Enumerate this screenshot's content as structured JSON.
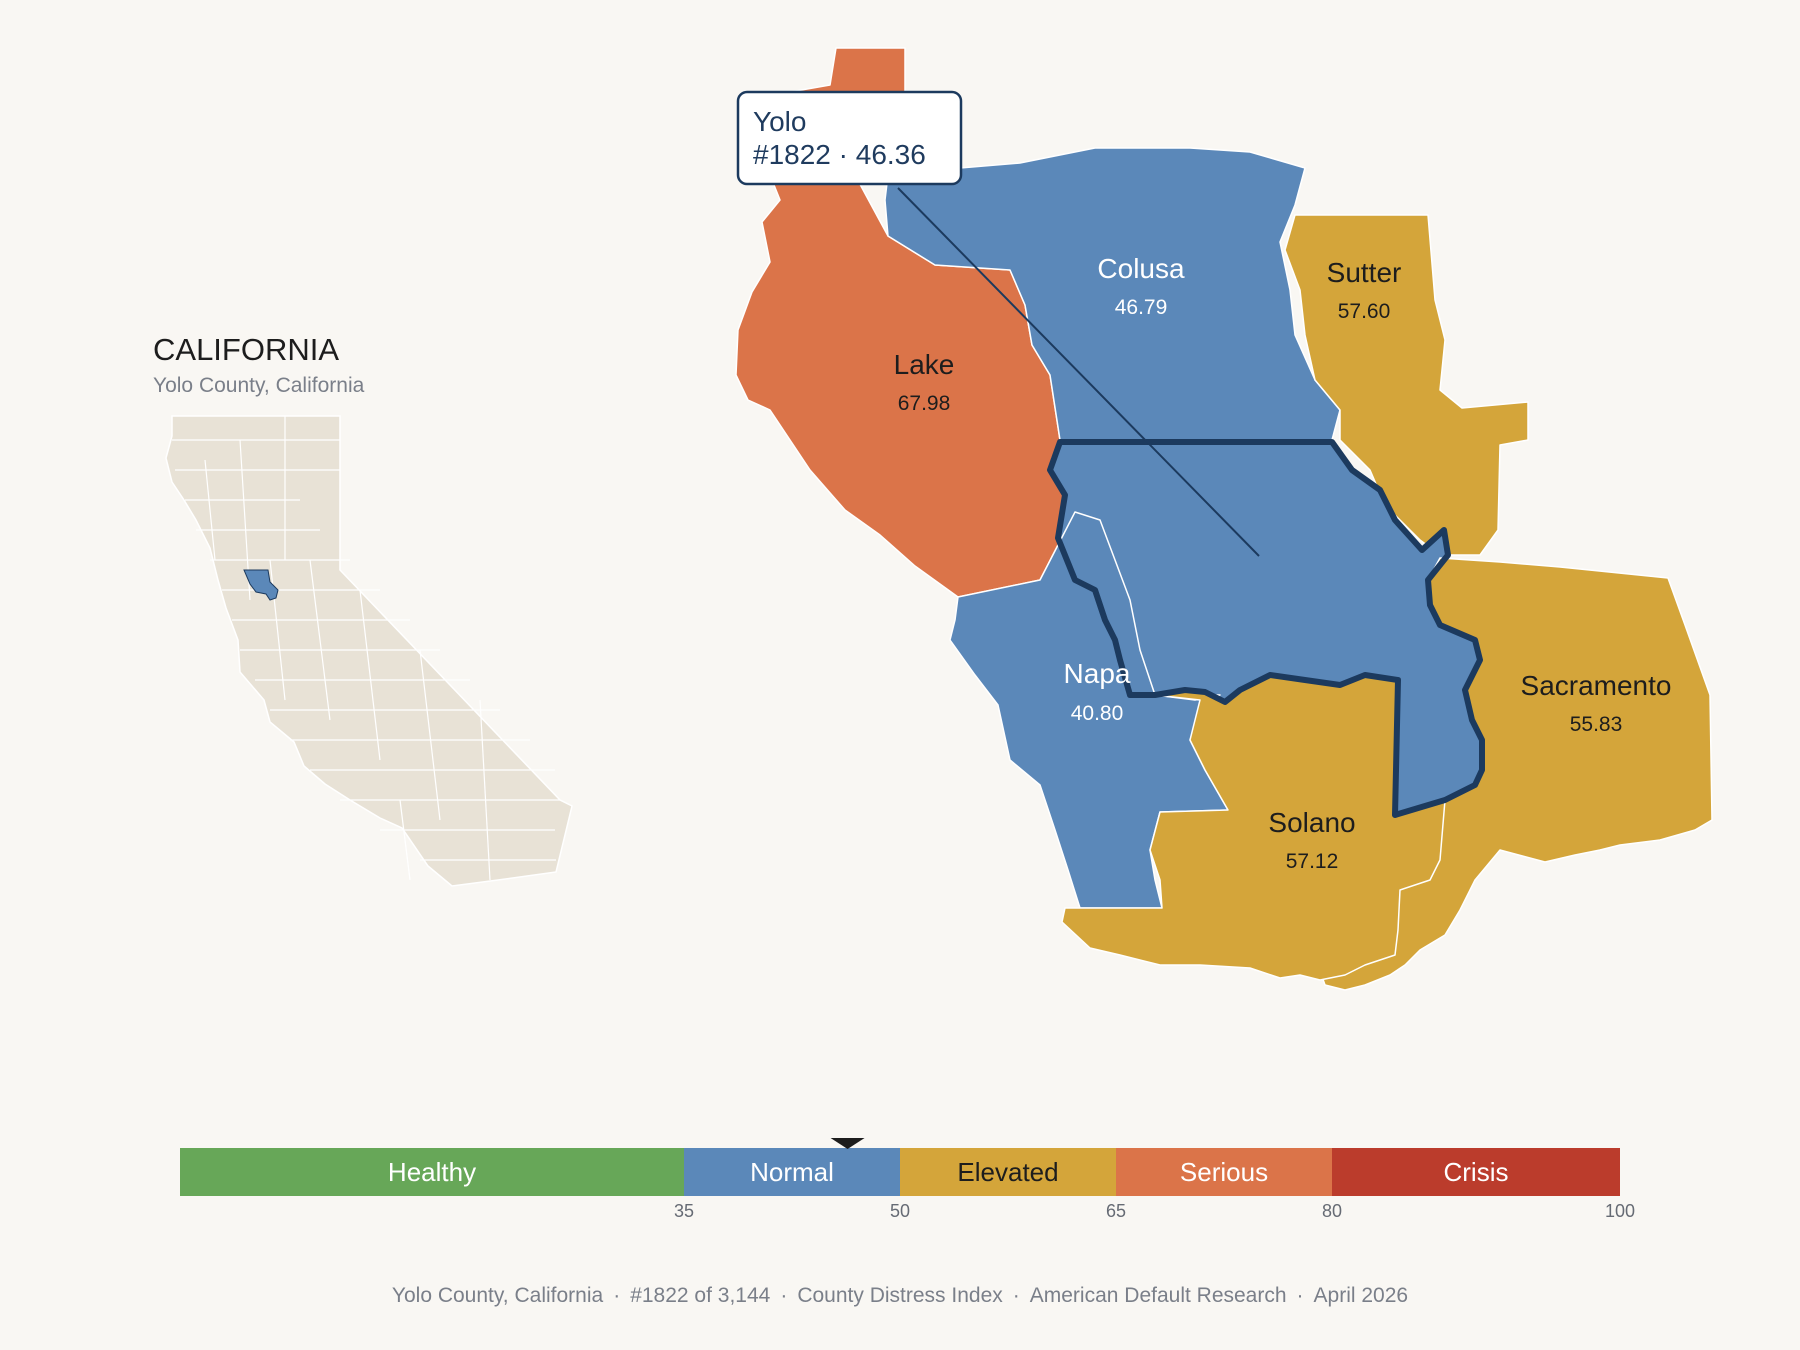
{
  "inset": {
    "title": "CALIFORNIA",
    "subtitle": "Yolo County, California",
    "highlight_color": "#5b88b9",
    "land_color": "#e8e2d6"
  },
  "tooltip": {
    "name": "Yolo",
    "detail": "#1822 · 46.36"
  },
  "counties": {
    "lake": {
      "name": "Lake",
      "value": "67.98",
      "color": "#db7449"
    },
    "colusa": {
      "name": "Colusa",
      "value": "46.79",
      "color": "#5b88b9"
    },
    "sutter": {
      "name": "Sutter",
      "value": "57.60",
      "color": "#d4a53a"
    },
    "yolo": {
      "name": "Yolo",
      "value": "46.36",
      "color": "#5b88b9",
      "outline": "#1c3a5e"
    },
    "napa": {
      "name": "Napa",
      "value": "40.80",
      "color": "#5b88b9"
    },
    "sacramento": {
      "name": "Sacramento",
      "value": "55.83",
      "color": "#d4a53a"
    },
    "solano": {
      "name": "Solano",
      "value": "57.12",
      "color": "#d4a53a"
    }
  },
  "scale": {
    "min": 0,
    "max": 100,
    "marker_value": 46.36,
    "bands": [
      {
        "label": "Healthy",
        "from": 0,
        "to": 35,
        "color": "#67a758",
        "text": "#ffffff"
      },
      {
        "label": "Normal",
        "from": 35,
        "to": 50,
        "color": "#5b88b9",
        "text": "#ffffff"
      },
      {
        "label": "Elevated",
        "from": 50,
        "to": 65,
        "color": "#d4a53a",
        "text": "#1d1d1d"
      },
      {
        "label": "Serious",
        "from": 65,
        "to": 80,
        "color": "#db7449",
        "text": "#ffffff"
      },
      {
        "label": "Crisis",
        "from": 80,
        "to": 100,
        "color": "#bb3c2c",
        "text": "#ffffff"
      }
    ],
    "ticks": [
      "35",
      "50",
      "65",
      "80",
      "100"
    ]
  },
  "footer": {
    "county": "Yolo County, California",
    "rank": "#1822 of 3,144",
    "index": "County Distress Index",
    "publisher": "American Default Research",
    "date": "April 2026"
  }
}
